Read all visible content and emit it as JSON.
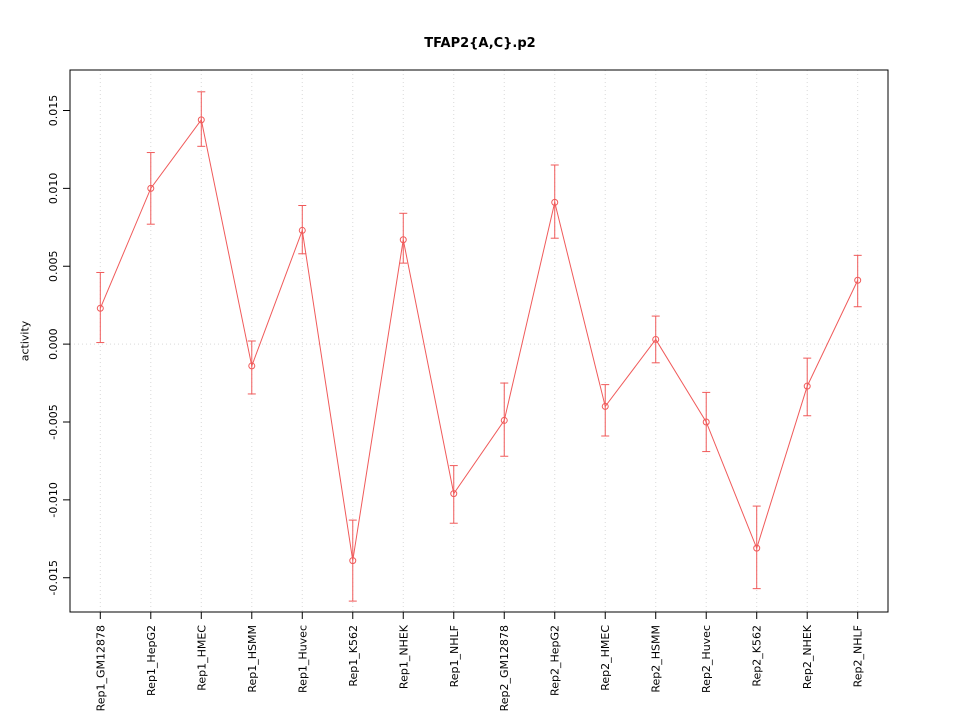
{
  "chart_data": {
    "type": "line",
    "title": "TFAP2{A,C}.p2",
    "xlabel": "",
    "ylabel": "activity",
    "legend": "none",
    "grid": "dotted vertical line at each category; dotted horizontal line at y=0",
    "categories": [
      "Rep1_GM12878",
      "Rep1_HepG2",
      "Rep1_HMEC",
      "Rep1_HSMM",
      "Rep1_Huvec",
      "Rep1_K562",
      "Rep1_NHEK",
      "Rep1_NHLF",
      "Rep2_GM12878",
      "Rep2_HepG2",
      "Rep2_HMEC",
      "Rep2_HSMM",
      "Rep2_Huvec",
      "Rep2_K562",
      "Rep2_NHEK",
      "Rep2_NHLF"
    ],
    "series": [
      {
        "name": "activity",
        "values": [
          0.0023,
          0.01,
          0.0144,
          -0.0014,
          0.0073,
          -0.0139,
          0.0067,
          -0.0096,
          -0.0049,
          0.0091,
          -0.004,
          0.0003,
          -0.005,
          -0.0131,
          -0.0027,
          0.0041
        ],
        "err_low": [
          0.0001,
          0.0077,
          0.0127,
          -0.0032,
          0.0058,
          -0.0165,
          0.0052,
          -0.0115,
          -0.0072,
          0.0068,
          -0.0059,
          -0.0012,
          -0.0069,
          -0.0157,
          -0.0046,
          0.0024
        ],
        "err_high": [
          0.0046,
          0.0123,
          0.0162,
          0.0002,
          0.0089,
          -0.0113,
          0.0084,
          -0.0078,
          -0.0025,
          0.0115,
          -0.0026,
          0.0018,
          -0.0031,
          -0.0104,
          -0.0009,
          0.0057
        ]
      }
    ],
    "yticks": [
      -0.015,
      -0.01,
      -0.005,
      0.0,
      0.005,
      0.01,
      0.015
    ],
    "ytick_labels": [
      "-0.015",
      "-0.010",
      "-0.005",
      "0.000",
      "0.005",
      "0.010",
      "0.015"
    ],
    "ylim": [
      -0.0172,
      0.0176
    ],
    "colors": {
      "line": "#f05a5a",
      "point_stroke": "#f05a5a",
      "grid": "#d9d9d9",
      "axis": "#000000",
      "plot_background": "#ffffff"
    }
  }
}
